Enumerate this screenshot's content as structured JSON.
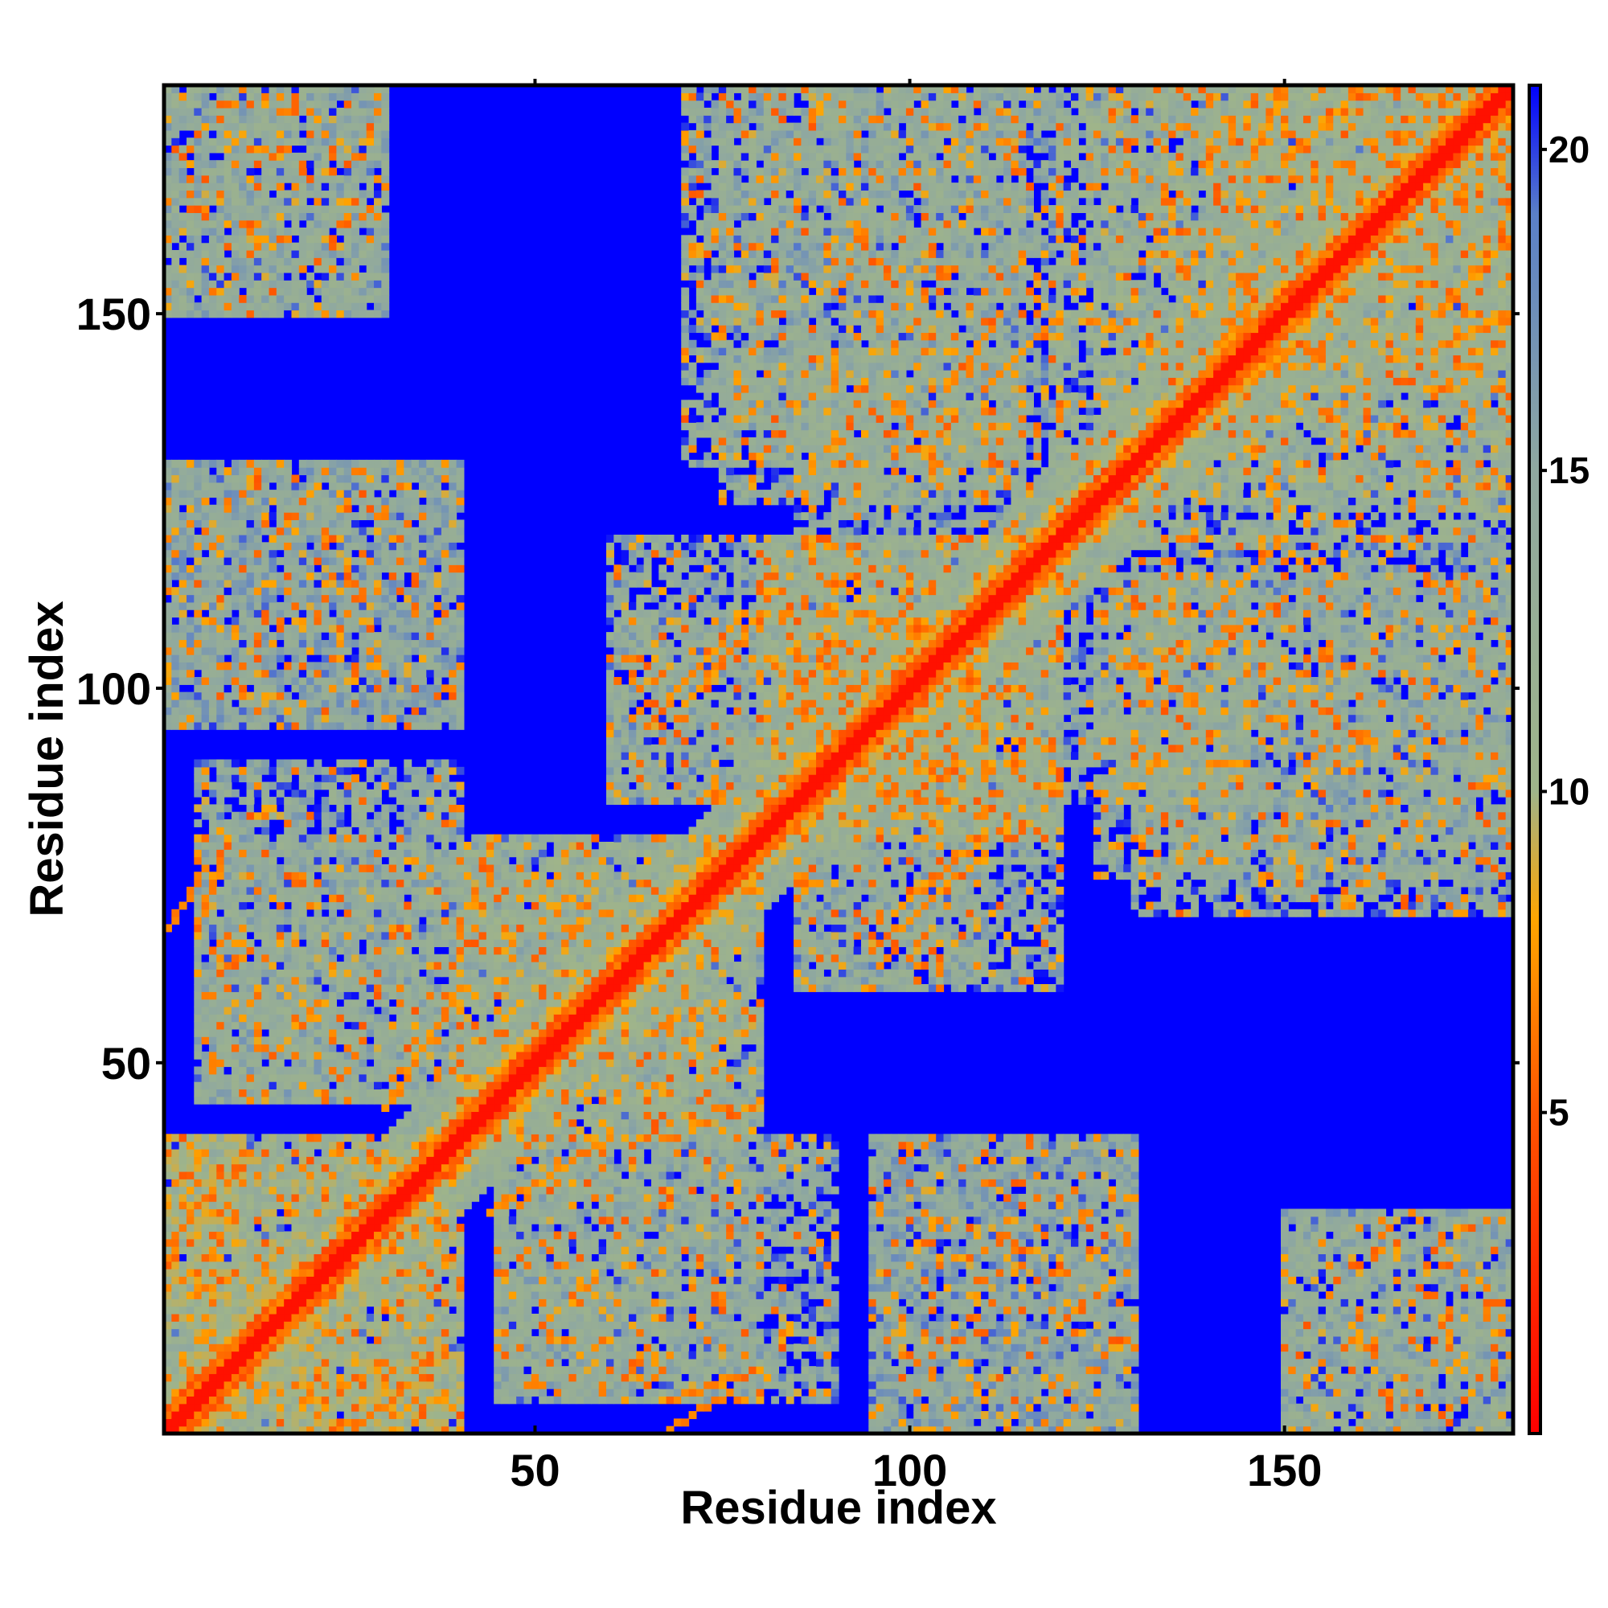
{
  "chart_data": {
    "type": "heatmap",
    "title": "",
    "xlabel": "Residue index",
    "ylabel": "Residue index",
    "n_residues": 180,
    "xlim": [
      1,
      180
    ],
    "ylim": [
      1,
      180
    ],
    "x_ticks": [
      50,
      100,
      150
    ],
    "y_ticks": [
      50,
      100,
      150
    ],
    "x_tick_labels": [
      "50",
      "100",
      "150"
    ],
    "y_tick_labels": [
      "50",
      "100",
      "150"
    ],
    "colorbar": {
      "range": [
        0,
        21
      ],
      "ticks": [
        5,
        10,
        15,
        20
      ],
      "tick_labels": [
        "5",
        "10",
        "15",
        "20"
      ],
      "stops": [
        {
          "value": 0,
          "color": "#ff0000"
        },
        {
          "value": 5,
          "color": "#ff5500"
        },
        {
          "value": 8,
          "color": "#ffa500"
        },
        {
          "value": 10,
          "color": "#9fb48a"
        },
        {
          "value": 15,
          "color": "#8fa8a0"
        },
        {
          "value": 19,
          "color": "#5a7fc8"
        },
        {
          "value": 21,
          "color": "#0000ff"
        }
      ]
    },
    "contact_blocks": [
      {
        "i": [
          1,
          40
        ],
        "j": [
          1,
          40
        ],
        "level": 9
      },
      {
        "i": [
          1,
          10
        ],
        "j": [
          20,
          40
        ],
        "level": 9
      },
      {
        "i": [
          15,
          40
        ],
        "j": [
          1,
          12
        ],
        "level": 9
      },
      {
        "i": [
          5,
          40
        ],
        "j": [
          45,
          90
        ],
        "level": 11
      },
      {
        "i": [
          45,
          80
        ],
        "j": [
          5,
          40
        ],
        "level": 11
      },
      {
        "i": [
          40,
          75
        ],
        "j": [
          40,
          80
        ],
        "level": 10
      },
      {
        "i": [
          40,
          80
        ],
        "j": [
          65,
          80
        ],
        "level": 11
      },
      {
        "i": [
          80,
          120
        ],
        "j": [
          80,
          120
        ],
        "level": 10
      },
      {
        "i": [
          60,
          110
        ],
        "j": [
          85,
          110
        ],
        "level": 11
      },
      {
        "i": [
          85,
          120
        ],
        "j": [
          60,
          110
        ],
        "level": 11
      },
      {
        "i": [
          120,
          145
        ],
        "j": [
          85,
          115
        ],
        "level": 11
      },
      {
        "i": [
          125,
          180
        ],
        "j": [
          120,
          180
        ],
        "level": 10
      },
      {
        "i": [
          150,
          180
        ],
        "j": [
          1,
          30
        ],
        "level": 11
      },
      {
        "i": [
          1,
          30
        ],
        "j": [
          150,
          180
        ],
        "level": 11
      },
      {
        "i": [
          130,
          180
        ],
        "j": [
          70,
          115
        ],
        "level": 11
      },
      {
        "i": [
          75,
          120
        ],
        "j": [
          125,
          180
        ],
        "level": 11
      },
      {
        "i": [
          95,
          130
        ],
        "j": [
          1,
          40
        ],
        "level": 12
      },
      {
        "i": [
          1,
          40
        ],
        "j": [
          95,
          130
        ],
        "level": 12
      },
      {
        "i": [
          140,
          180
        ],
        "j": [
          140,
          180
        ],
        "level": 11
      }
    ],
    "orange_segments": [
      {
        "i": [
          26,
          32
        ],
        "j": [
          1,
          6
        ]
      },
      {
        "i": [
          1,
          6
        ],
        "j": [
          26,
          32
        ]
      },
      {
        "i": [
          68,
          80
        ],
        "j": [
          5,
          9
        ]
      },
      {
        "i": [
          44,
          60
        ],
        "j": [
          30,
          40
        ]
      },
      {
        "i": [
          1,
          6
        ],
        "j": [
          68,
          76
        ]
      },
      {
        "i": [
          95,
          110
        ],
        "j": [
          65,
          78
        ]
      },
      {
        "i": [
          70,
          80
        ],
        "j": [
          98,
          110
        ]
      },
      {
        "i": [
          140,
          150
        ],
        "j": [
          105,
          112
        ]
      },
      {
        "i": [
          110,
          120
        ],
        "j": [
          140,
          150
        ]
      },
      {
        "i": [
          170,
          180
        ],
        "j": [
          150,
          160
        ]
      },
      {
        "i": [
          145,
          150
        ],
        "j": [
          170,
          180
        ]
      }
    ]
  }
}
